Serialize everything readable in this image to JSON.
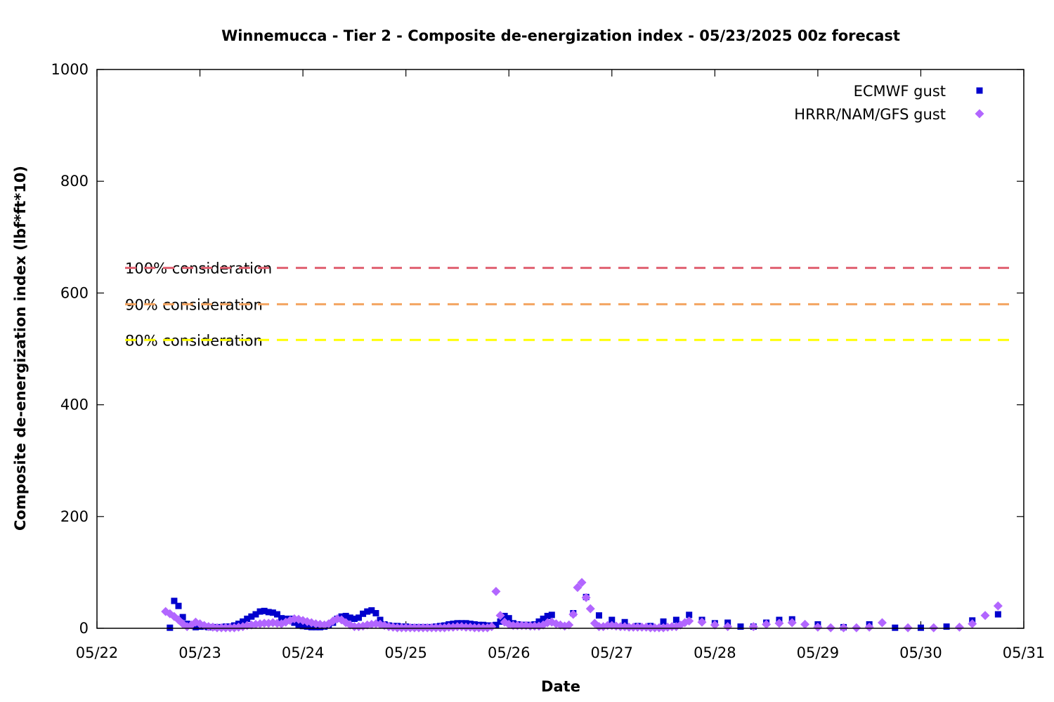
{
  "chart_data": {
    "type": "scatter",
    "title": "Winnemucca - Tier 2 - Composite de-energization index - 05/23/2025 00z forecast",
    "xlabel": "Date",
    "ylabel": "Composite de-energization index (lbf*ft*10)",
    "xlim": [
      "05/22",
      "05/31"
    ],
    "ylim": [
      0,
      1000
    ],
    "x_ticks": [
      "05/22",
      "05/23",
      "05/24",
      "05/25",
      "05/26",
      "05/27",
      "05/28",
      "05/29",
      "05/30",
      "05/31"
    ],
    "y_ticks": [
      0,
      200,
      400,
      600,
      800,
      1000
    ],
    "grid": false,
    "legend_position": "top-right",
    "reference_lines": [
      {
        "label": "100% consideration",
        "value": 645,
        "color": "#e06070"
      },
      {
        "label": "90% consideration",
        "value": 580,
        "color": "#f4a460"
      },
      {
        "label": "80% consideration",
        "value": 516,
        "color": "#ffff00"
      }
    ],
    "series": [
      {
        "name": "ECMWF gust",
        "color": "#0000cd",
        "marker": "square",
        "points": [
          [
            "05/22 17:00",
            1
          ],
          [
            "05/22 18:00",
            49
          ],
          [
            "05/22 19:00",
            40
          ],
          [
            "05/22 20:00",
            20
          ],
          [
            "05/22 21:00",
            8
          ],
          [
            "05/22 22:00",
            5
          ],
          [
            "05/22 23:00",
            2
          ],
          [
            "05/23 00:00",
            3
          ],
          [
            "05/23 01:00",
            3
          ],
          [
            "05/23 02:00",
            2
          ],
          [
            "05/23 03:00",
            2
          ],
          [
            "05/23 04:00",
            2
          ],
          [
            "05/23 05:00",
            2
          ],
          [
            "05/23 06:00",
            3
          ],
          [
            "05/23 07:00",
            3
          ],
          [
            "05/23 08:00",
            5
          ],
          [
            "05/23 09:00",
            8
          ],
          [
            "05/23 10:00",
            12
          ],
          [
            "05/23 11:00",
            17
          ],
          [
            "05/23 12:00",
            21
          ],
          [
            "05/23 13:00",
            25
          ],
          [
            "05/23 14:00",
            30
          ],
          [
            "05/23 15:00",
            31
          ],
          [
            "05/23 16:00",
            29
          ],
          [
            "05/23 17:00",
            28
          ],
          [
            "05/23 18:00",
            25
          ],
          [
            "05/23 19:00",
            18
          ],
          [
            "05/23 20:00",
            17
          ],
          [
            "05/23 21:00",
            17
          ],
          [
            "05/23 22:00",
            10
          ],
          [
            "05/23 23:00",
            5
          ],
          [
            "05/24 00:00",
            4
          ],
          [
            "05/24 01:00",
            3
          ],
          [
            "05/24 02:00",
            2
          ],
          [
            "05/24 03:00",
            2
          ],
          [
            "05/24 04:00",
            2
          ],
          [
            "05/24 05:00",
            3
          ],
          [
            "05/24 06:00",
            5
          ],
          [
            "05/24 07:00",
            10
          ],
          [
            "05/24 08:00",
            17
          ],
          [
            "05/24 09:00",
            21
          ],
          [
            "05/24 10:00",
            22
          ],
          [
            "05/24 11:00",
            19
          ],
          [
            "05/24 12:00",
            17
          ],
          [
            "05/24 13:00",
            19
          ],
          [
            "05/24 14:00",
            26
          ],
          [
            "05/24 15:00",
            30
          ],
          [
            "05/24 16:00",
            32
          ],
          [
            "05/24 17:00",
            27
          ],
          [
            "05/24 18:00",
            15
          ],
          [
            "05/24 19:00",
            7
          ],
          [
            "05/24 20:00",
            5
          ],
          [
            "05/24 21:00",
            4
          ],
          [
            "05/24 22:00",
            4
          ],
          [
            "05/24 23:00",
            3
          ],
          [
            "05/25 00:00",
            3
          ],
          [
            "05/25 01:00",
            2
          ],
          [
            "05/25 02:00",
            2
          ],
          [
            "05/25 03:00",
            2
          ],
          [
            "05/25 04:00",
            2
          ],
          [
            "05/25 05:00",
            2
          ],
          [
            "05/25 06:00",
            2
          ],
          [
            "05/25 07:00",
            3
          ],
          [
            "05/25 08:00",
            4
          ],
          [
            "05/25 09:00",
            5
          ],
          [
            "05/25 10:00",
            7
          ],
          [
            "05/25 11:00",
            8
          ],
          [
            "05/25 12:00",
            9
          ],
          [
            "05/25 13:00",
            9
          ],
          [
            "05/25 14:00",
            9
          ],
          [
            "05/25 15:00",
            8
          ],
          [
            "05/25 16:00",
            7
          ],
          [
            "05/25 17:00",
            6
          ],
          [
            "05/25 18:00",
            6
          ],
          [
            "05/25 19:00",
            5
          ],
          [
            "05/25 20:00",
            5
          ],
          [
            "05/25 21:00",
            6
          ],
          [
            "05/25 22:00",
            12
          ],
          [
            "05/25 23:00",
            22
          ],
          [
            "05/26 00:00",
            18
          ],
          [
            "05/26 01:00",
            9
          ],
          [
            "05/26 02:00",
            7
          ],
          [
            "05/26 03:00",
            6
          ],
          [
            "05/26 04:00",
            6
          ],
          [
            "05/26 05:00",
            6
          ],
          [
            "05/26 06:00",
            7
          ],
          [
            "05/26 07:00",
            12
          ],
          [
            "05/26 08:00",
            17
          ],
          [
            "05/26 09:00",
            22
          ],
          [
            "05/26 10:00",
            24
          ],
          [
            "05/26 15:00",
            27
          ],
          [
            "05/26 18:00",
            56
          ],
          [
            "05/26 21:00",
            23
          ],
          [
            "05/27 00:00",
            15
          ],
          [
            "05/27 03:00",
            11
          ],
          [
            "05/27 06:00",
            4
          ],
          [
            "05/27 09:00",
            4
          ],
          [
            "05/27 12:00",
            12
          ],
          [
            "05/27 15:00",
            15
          ],
          [
            "05/27 18:00",
            24
          ],
          [
            "05/27 21:00",
            15
          ],
          [
            "05/28 00:00",
            9
          ],
          [
            "05/28 03:00",
            10
          ],
          [
            "05/28 06:00",
            3
          ],
          [
            "05/28 09:00",
            3
          ],
          [
            "05/28 12:00",
            10
          ],
          [
            "05/28 15:00",
            15
          ],
          [
            "05/28 18:00",
            16
          ],
          [
            "05/29 00:00",
            7
          ],
          [
            "05/29 06:00",
            2
          ],
          [
            "05/29 12:00",
            7
          ],
          [
            "05/29 18:00",
            1
          ],
          [
            "05/30 00:00",
            1
          ],
          [
            "05/30 06:00",
            3
          ],
          [
            "05/30 12:00",
            14
          ],
          [
            "05/30 18:00",
            25
          ]
        ]
      },
      {
        "name": "HRRR/NAM/GFS gust",
        "color": "#b266ff",
        "marker": "diamond",
        "points": [
          [
            "05/22 16:00",
            30
          ],
          [
            "05/22 17:00",
            26
          ],
          [
            "05/22 18:00",
            21
          ],
          [
            "05/22 19:00",
            15
          ],
          [
            "05/22 20:00",
            8
          ],
          [
            "05/22 21:00",
            3
          ],
          [
            "05/22 22:00",
            6
          ],
          [
            "05/22 23:00",
            11
          ],
          [
            "05/23 00:00",
            8
          ],
          [
            "05/23 01:00",
            5
          ],
          [
            "05/23 02:00",
            3
          ],
          [
            "05/23 03:00",
            2
          ],
          [
            "05/23 04:00",
            1
          ],
          [
            "05/23 05:00",
            1
          ],
          [
            "05/23 06:00",
            1
          ],
          [
            "05/23 07:00",
            1
          ],
          [
            "05/23 08:00",
            1
          ],
          [
            "05/23 09:00",
            2
          ],
          [
            "05/23 10:00",
            3
          ],
          [
            "05/23 11:00",
            5
          ],
          [
            "05/23 12:00",
            6
          ],
          [
            "05/23 13:00",
            7
          ],
          [
            "05/23 14:00",
            8
          ],
          [
            "05/23 15:00",
            9
          ],
          [
            "05/23 16:00",
            9
          ],
          [
            "05/23 17:00",
            10
          ],
          [
            "05/23 18:00",
            9
          ],
          [
            "05/23 19:00",
            8
          ],
          [
            "05/23 20:00",
            11
          ],
          [
            "05/23 21:00",
            14
          ],
          [
            "05/23 22:00",
            17
          ],
          [
            "05/23 23:00",
            16
          ],
          [
            "05/24 00:00",
            14
          ],
          [
            "05/24 01:00",
            12
          ],
          [
            "05/24 02:00",
            10
          ],
          [
            "05/24 03:00",
            8
          ],
          [
            "05/24 04:00",
            7
          ],
          [
            "05/24 05:00",
            6
          ],
          [
            "05/24 06:00",
            8
          ],
          [
            "05/24 07:00",
            13
          ],
          [
            "05/24 08:00",
            17
          ],
          [
            "05/24 09:00",
            15
          ],
          [
            "05/24 10:00",
            10
          ],
          [
            "05/24 11:00",
            6
          ],
          [
            "05/24 12:00",
            3
          ],
          [
            "05/24 13:00",
            3
          ],
          [
            "05/24 14:00",
            4
          ],
          [
            "05/24 15:00",
            6
          ],
          [
            "05/24 16:00",
            7
          ],
          [
            "05/24 17:00",
            8
          ],
          [
            "05/24 18:00",
            7
          ],
          [
            "05/24 19:00",
            5
          ],
          [
            "05/24 20:00",
            3
          ],
          [
            "05/24 21:00",
            2
          ],
          [
            "05/24 22:00",
            1
          ],
          [
            "05/24 23:00",
            1
          ],
          [
            "05/25 00:00",
            1
          ],
          [
            "05/25 01:00",
            1
          ],
          [
            "05/25 02:00",
            1
          ],
          [
            "05/25 03:00",
            1
          ],
          [
            "05/25 04:00",
            1
          ],
          [
            "05/25 05:00",
            1
          ],
          [
            "05/25 06:00",
            1
          ],
          [
            "05/25 07:00",
            1
          ],
          [
            "05/25 08:00",
            1
          ],
          [
            "05/25 09:00",
            1
          ],
          [
            "05/25 10:00",
            2
          ],
          [
            "05/25 11:00",
            2
          ],
          [
            "05/25 12:00",
            3
          ],
          [
            "05/25 13:00",
            3
          ],
          [
            "05/25 14:00",
            2
          ],
          [
            "05/25 15:00",
            2
          ],
          [
            "05/25 16:00",
            1
          ],
          [
            "05/25 17:00",
            1
          ],
          [
            "05/25 18:00",
            1
          ],
          [
            "05/25 19:00",
            1
          ],
          [
            "05/25 20:00",
            3
          ],
          [
            "05/25 21:00",
            66
          ],
          [
            "05/25 22:00",
            23
          ],
          [
            "05/25 23:00",
            11
          ],
          [
            "05/26 00:00",
            7
          ],
          [
            "05/26 01:00",
            5
          ],
          [
            "05/26 02:00",
            5
          ],
          [
            "05/26 03:00",
            5
          ],
          [
            "05/26 04:00",
            5
          ],
          [
            "05/26 05:00",
            4
          ],
          [
            "05/26 06:00",
            4
          ],
          [
            "05/26 07:00",
            4
          ],
          [
            "05/26 08:00",
            6
          ],
          [
            "05/26 09:00",
            10
          ],
          [
            "05/26 10:00",
            11
          ],
          [
            "05/26 11:00",
            8
          ],
          [
            "05/26 12:00",
            6
          ],
          [
            "05/26 13:00",
            4
          ],
          [
            "05/26 14:00",
            6
          ],
          [
            "05/26 15:00",
            25
          ],
          [
            "05/26 16:00",
            73
          ],
          [
            "05/26 17:00",
            82
          ],
          [
            "05/26 18:00",
            55
          ],
          [
            "05/26 19:00",
            35
          ],
          [
            "05/26 20:00",
            9
          ],
          [
            "05/26 21:00",
            3
          ],
          [
            "05/26 22:00",
            3
          ],
          [
            "05/26 23:00",
            5
          ],
          [
            "05/27 00:00",
            5
          ],
          [
            "05/27 01:00",
            4
          ],
          [
            "05/27 02:00",
            3
          ],
          [
            "05/27 03:00",
            3
          ],
          [
            "05/27 04:00",
            2
          ],
          [
            "05/27 05:00",
            2
          ],
          [
            "05/27 06:00",
            2
          ],
          [
            "05/27 07:00",
            2
          ],
          [
            "05/27 08:00",
            2
          ],
          [
            "05/27 09:00",
            1
          ],
          [
            "05/27 10:00",
            1
          ],
          [
            "05/27 11:00",
            1
          ],
          [
            "05/27 12:00",
            1
          ],
          [
            "05/27 13:00",
            2
          ],
          [
            "05/27 14:00",
            3
          ],
          [
            "05/27 15:00",
            3
          ],
          [
            "05/27 16:00",
            6
          ],
          [
            "05/27 17:00",
            10
          ],
          [
            "05/27 18:00",
            13
          ],
          [
            "05/27 21:00",
            11
          ],
          [
            "05/28 00:00",
            6
          ],
          [
            "05/28 03:00",
            3
          ],
          [
            "05/28 09:00",
            3
          ],
          [
            "05/28 12:00",
            7
          ],
          [
            "05/28 15:00",
            9
          ],
          [
            "05/28 18:00",
            10
          ],
          [
            "05/28 21:00",
            7
          ],
          [
            "05/29 00:00",
            2
          ],
          [
            "05/29 03:00",
            1
          ],
          [
            "05/29 06:00",
            1
          ],
          [
            "05/29 09:00",
            1
          ],
          [
            "05/29 12:00",
            2
          ],
          [
            "05/29 15:00",
            10
          ],
          [
            "05/29 21:00",
            1
          ],
          [
            "05/30 03:00",
            1
          ],
          [
            "05/30 09:00",
            2
          ],
          [
            "05/30 12:00",
            8
          ],
          [
            "05/30 15:00",
            23
          ],
          [
            "05/30 18:00",
            40
          ]
        ]
      }
    ]
  }
}
